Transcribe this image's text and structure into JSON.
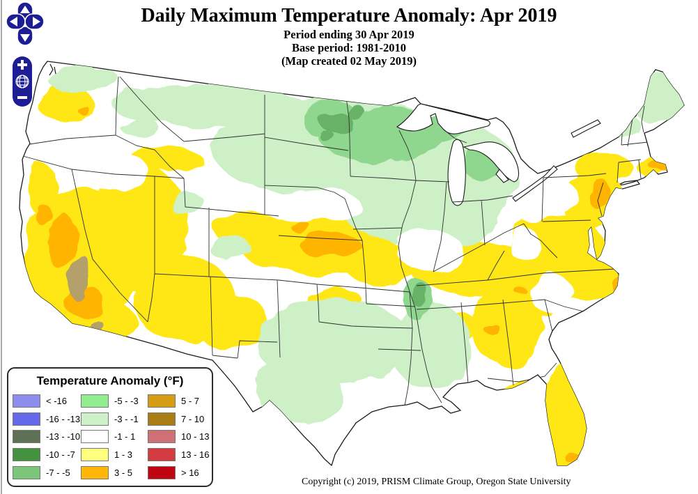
{
  "header": {
    "title": "Daily Maximum Temperature Anomaly: Apr 2019",
    "subtitle1": "Period ending 30 Apr 2019",
    "subtitle2": "Base period: 1981-2010",
    "subtitle3": "(Map created 02 May 2019)"
  },
  "footer": {
    "copyright": "Copyright (c) 2019, PRISM Climate Group, Oregon State University"
  },
  "controls": {
    "zoom_in": "+",
    "zoom_out": "−",
    "pan_directions": [
      "up",
      "left",
      "right",
      "down"
    ],
    "zoom_world": "globe"
  },
  "legend": {
    "title": "Temperature Anomaly (°F)",
    "items": [
      {
        "label": "< -16",
        "color": "#8d8dee"
      },
      {
        "label": "-16 - -13",
        "color": "#6467e9"
      },
      {
        "label": "-13 - -10",
        "color": "#5e7156"
      },
      {
        "label": "-10 - -7",
        "color": "#43923f"
      },
      {
        "label": "-7 - -5",
        "color": "#7cc67c"
      },
      {
        "label": "-5 - -3",
        "color": "#90ee90"
      },
      {
        "label": "-3 - -1",
        "color": "#cef2c8"
      },
      {
        "label": "-1 - 1",
        "color": "#ffffff"
      },
      {
        "label": "1 - 3",
        "color": "#ffff7e"
      },
      {
        "label": "3 - 5",
        "color": "#ffb607"
      },
      {
        "label": "5 - 7",
        "color": "#d69c15"
      },
      {
        "label": "7 - 10",
        "color": "#a97d14"
      },
      {
        "label": "10 - 13",
        "color": "#cf6f77"
      },
      {
        "label": "13 - 16",
        "color": "#d43a40"
      },
      {
        "label": "> 16",
        "color": "#bf0510"
      }
    ]
  },
  "map_palette": {
    "background": "#ffffff",
    "outline": "#1b1b1b",
    "state_border": "#2e2e2e",
    "yellow": "#ffe712",
    "orange": "#ffb400",
    "light_green": "#cdf0c6",
    "medium_green": "#8fd68f",
    "dark_green": "#68b268",
    "sierra_gold": "#b3a06a",
    "water_white": "#ffffff",
    "control_blue": "#1d1d96",
    "frame_line": "#555555"
  }
}
